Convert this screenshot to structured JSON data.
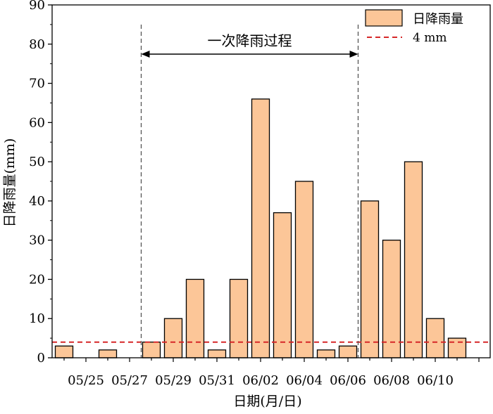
{
  "chart_data": {
    "type": "bar",
    "title": "",
    "xlabel": "日期(月/日)",
    "ylabel": "日降雨量(mm)",
    "ylim": [
      0,
      90
    ],
    "yticks": [
      0,
      10,
      20,
      30,
      40,
      50,
      60,
      70,
      80,
      90
    ],
    "categories": [
      "05/24",
      "05/25",
      "05/26",
      "05/27",
      "05/28",
      "05/29",
      "05/30",
      "05/31",
      "06/01",
      "06/02",
      "06/03",
      "06/04",
      "06/05",
      "06/06",
      "06/07",
      "06/08",
      "06/09",
      "06/10",
      "06/11"
    ],
    "x_tick_labels": [
      "05/25",
      "05/27",
      "05/29",
      "05/31",
      "06/02",
      "06/04",
      "06/06",
      "06/08",
      "06/10"
    ],
    "series": [
      {
        "name": "日降雨量",
        "values": [
          3,
          0,
          2,
          0,
          4,
          10,
          20,
          2,
          20,
          66,
          37,
          45,
          2,
          3,
          40,
          30,
          50,
          10,
          5
        ],
        "color": "#fcc698"
      }
    ],
    "reference_line": {
      "label": "4 mm",
      "value": 4,
      "color": "#d62728"
    },
    "annotation": {
      "text": "一次降雨过程",
      "start_category": "05/28",
      "end_category": "06/06"
    },
    "legend_position": "top-right",
    "grid": false
  }
}
